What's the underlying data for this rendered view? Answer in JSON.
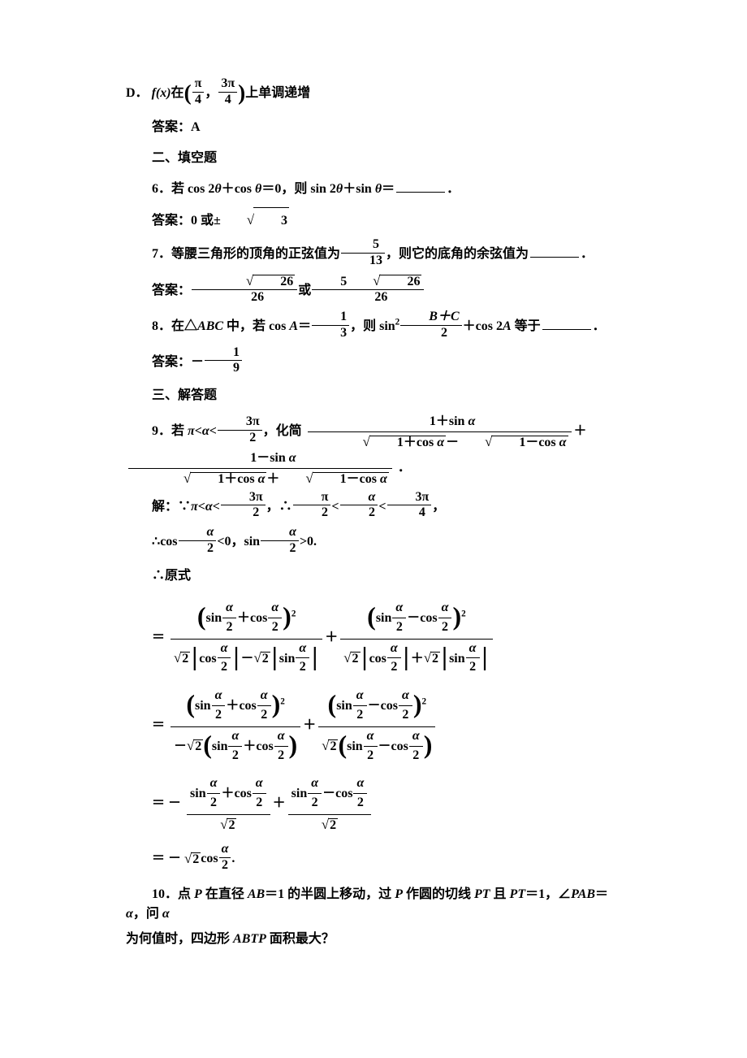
{
  "colors": {
    "text": "#000000",
    "background": "#ffffff",
    "rule": "#000000"
  },
  "typography": {
    "body_fontsize_pt": 12,
    "line_height": 1.95,
    "weight": "bold",
    "cjk_font": "SimSun",
    "latin_font": "Times New Roman"
  },
  "optionD": {
    "prefix": "D．",
    "fx": "f(x)",
    "mid": "在",
    "interval_num_l": "π",
    "interval_den_l": "4",
    "interval_num_r": "3π",
    "interval_den_r": "4",
    "suffix": "上单调递增"
  },
  "ansA": "答案：A",
  "section2": "二、填空题",
  "q6": {
    "num": "6．",
    "t1": "若 ",
    "expr1a": "cos 2",
    "theta": "θ",
    "plus": "＋",
    "expr1b": "cos ",
    "eq0": "＝0，则 ",
    "expr2a": "sin 2",
    "expr2b": "sin ",
    "eqblank": "＝",
    "period": "．"
  },
  "ans6": {
    "label": "答案：",
    "v1": "0 ",
    "or": "或",
    "pm": "±",
    "sqrt3": "3"
  },
  "q7": {
    "num": "7．",
    "t1": "等腰三角形的顶角的正弦值为",
    "frac_num": "5",
    "frac_den": "13",
    "t2": "，则它的底角的余弦值为",
    "period": "．"
  },
  "ans7": {
    "label": "答案：",
    "f1_num_sqrt": "26",
    "f1_den": "26",
    "or": "或",
    "f2_num_coef": "5",
    "f2_num_sqrt": "26",
    "f2_den": "26"
  },
  "q8": {
    "num": "8．",
    "t1": "在△",
    "ABC": "ABC",
    "t2": " 中，若 ",
    "cosA": "cos ",
    "A": "A",
    "eq": "＝",
    "frac_num": "1",
    "frac_den": "3",
    "t3": "，则 ",
    "sin2": "sin",
    "sup2": "2",
    "bc_num": "B＋C",
    "bc_den": "2",
    "plus": "＋",
    "cos2A": "cos 2",
    "t4": " 等于",
    "period": "．"
  },
  "ans8": {
    "label": "答案：－",
    "num": "1",
    "den": "9"
  },
  "section3": "三、解答题",
  "q9": {
    "num": "9．",
    "t1": "若 ",
    "pi": "π<",
    "alpha": "α",
    "lt": "<",
    "lim_num": "3π",
    "lim_den": "2",
    "t2": "，化简",
    "f1_num": "1＋sin ",
    "f1_den_a": "1＋cos ",
    "f1_den_b": "1－cos ",
    "plus": "＋",
    "f2_num": "1－sin ",
    "period": " ．"
  },
  "sol9": {
    "l1": {
      "pre": "解：∵",
      "pi": "π<",
      "alpha": "α",
      "lt": "<",
      "lim_num": "3π",
      "lim_den": "2",
      "comma": "，∴",
      "h_num_l": "π",
      "h_den_l": "2",
      "h_mid_num": "α",
      "h_mid_den": "2",
      "h_num_r": "3π",
      "h_den_r": "4",
      "end": "，"
    },
    "l2": {
      "pre": "∴",
      "cos": "cos",
      "a2_num": "α",
      "a2_den": "2",
      "lt0": "<0，",
      "sin": "sin",
      "gt0": ">0."
    },
    "l3": "∴原式"
  },
  "eq9": {
    "eq": "＝",
    "sin": "sin",
    "cos": "cos",
    "a2_num": "α",
    "a2_den": "2",
    "plus": "＋",
    "minus": "－",
    "sq": "2",
    "sqrt2": "2",
    "neg": "－"
  },
  "eq9_last": {
    "eq": "＝ －",
    "sqrt2": "2",
    "cos": "cos",
    "a2_num": "α",
    "a2_den": "2",
    "period": "."
  },
  "q10": {
    "num": "10．",
    "t1": "点 ",
    "P": "P",
    "t2": " 在直径 ",
    "AB": "AB",
    "eq1": "＝1 的半圆上移动，过 ",
    "t3": " 作圆的切线 ",
    "PT": "PT",
    "t4": " 且 ",
    "eq2": "＝1，∠",
    "PAB": "PAB",
    "eqalpha": "＝",
    "alpha": "α",
    "t5": "，问 ",
    "line2a": "为何值时，四边形 ",
    "ABTP": "ABTP",
    "line2b": " 面积最大？"
  }
}
